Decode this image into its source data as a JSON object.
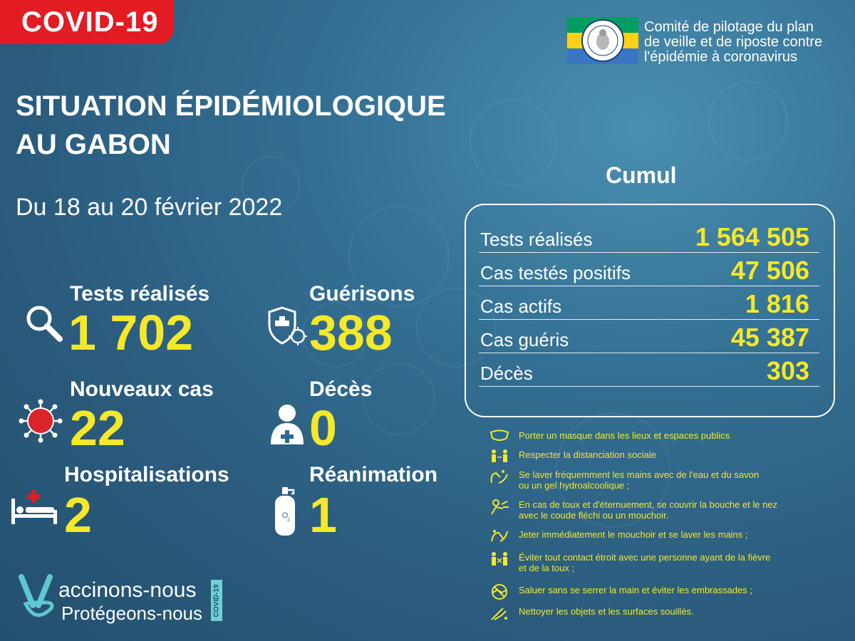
{
  "badge": "COVID-19",
  "committee": {
    "lines": [
      "Comité de pilotage du plan",
      "de veille et de riposte contre",
      "l'épidémie à coronavirus"
    ]
  },
  "flag_colors": {
    "green": "#009e60",
    "yellow": "#fcd116",
    "blue": "#3a75c4"
  },
  "title": {
    "line1": "SITUATION ÉPIDÉMIOLOGIQUE",
    "line2": "AU GABON"
  },
  "period": "Du 18 au 20 février 2022",
  "stats": {
    "tests": {
      "label": "Tests réalisés",
      "value": "1 702",
      "icon": "magnifier-icon"
    },
    "guerisons": {
      "label": "Guérisons",
      "value": "388",
      "icon": "shield-virus-icon"
    },
    "nouveaux": {
      "label": "Nouveaux cas",
      "value": "22",
      "icon": "virus-icon"
    },
    "deces": {
      "label": "Décès",
      "value": "0",
      "icon": "person-cross-icon"
    },
    "hosp": {
      "label": "Hospitalisations",
      "value": "2",
      "icon": "hospital-bed-icon"
    },
    "rea": {
      "label": "Réanimation",
      "value": "1",
      "icon": "oxygen-tank-icon"
    }
  },
  "cumul": {
    "title": "Cumul",
    "rows": [
      {
        "label": "Tests réalisés",
        "value": "1 564 505"
      },
      {
        "label": "Cas testés positifs",
        "value": "47 506"
      },
      {
        "label": "Cas actifs",
        "value": "1 816"
      },
      {
        "label": "Cas guéris",
        "value": "45 387"
      },
      {
        "label": "Décès",
        "value": "303"
      }
    ]
  },
  "rules": [
    {
      "text": "Porter un masque dans les lieux et espaces publics",
      "icon": "mask-icon"
    },
    {
      "text": "Respecter la distanciation sociale",
      "icon": "distancing-icon"
    },
    {
      "text": "Se laver fréquemment les mains avec de l'eau et du savon\n ou un gel hydroalcoolique ;",
      "icon": "handwash-icon"
    },
    {
      "text": "En cas de toux et d'éternuement, se couvrir la bouche et le nez\n avec le coude fléchi ou un mouchoir.",
      "icon": "cough-icon"
    },
    {
      "text": "Jeter immédiatement le mouchoir et se laver les mains ;",
      "icon": "tissue-icon"
    },
    {
      "text": "Éviter tout contact étroit avec une personne ayant de la fièvre\n et de la toux ;",
      "icon": "avoid-contact-icon"
    },
    {
      "text": "Saluer sans se serrer la main et éviter les embrassades ;",
      "icon": "no-handshake-icon"
    },
    {
      "text": "Nettoyer les objets et les surfaces souillés.",
      "icon": "cleaning-icon"
    }
  ],
  "vaccination": {
    "main": "accinons-nous",
    "sub": "Protégeons-nous",
    "tag": "COVID-19"
  },
  "colors": {
    "accent_yellow": "#f5e829",
    "badge_red": "#e31b23",
    "background": "#2f6a8e"
  }
}
